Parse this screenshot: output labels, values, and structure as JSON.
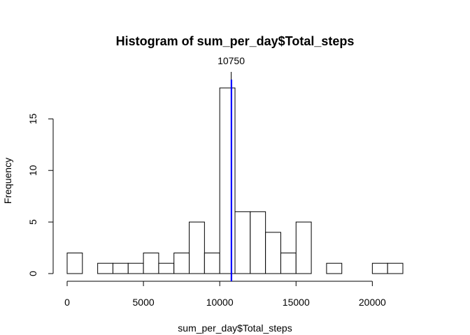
{
  "chart_data": {
    "type": "bar",
    "title": "Histogram of sum_per_day$Total_steps",
    "xlabel": "sum_per_day$Total_steps",
    "ylabel": "Frequency",
    "bin_width": 1000,
    "bins": [
      {
        "start": 0,
        "end": 1000,
        "count": 2
      },
      {
        "start": 1000,
        "end": 2000,
        "count": 0
      },
      {
        "start": 2000,
        "end": 3000,
        "count": 1
      },
      {
        "start": 3000,
        "end": 4000,
        "count": 1
      },
      {
        "start": 4000,
        "end": 5000,
        "count": 1
      },
      {
        "start": 5000,
        "end": 6000,
        "count": 2
      },
      {
        "start": 6000,
        "end": 7000,
        "count": 1
      },
      {
        "start": 7000,
        "end": 8000,
        "count": 2
      },
      {
        "start": 8000,
        "end": 9000,
        "count": 5
      },
      {
        "start": 9000,
        "end": 10000,
        "count": 2
      },
      {
        "start": 10000,
        "end": 11000,
        "count": 18
      },
      {
        "start": 11000,
        "end": 12000,
        "count": 6
      },
      {
        "start": 12000,
        "end": 13000,
        "count": 6
      },
      {
        "start": 13000,
        "end": 14000,
        "count": 4
      },
      {
        "start": 14000,
        "end": 15000,
        "count": 2
      },
      {
        "start": 15000,
        "end": 16000,
        "count": 5
      },
      {
        "start": 16000,
        "end": 17000,
        "count": 0
      },
      {
        "start": 17000,
        "end": 18000,
        "count": 1
      },
      {
        "start": 18000,
        "end": 19000,
        "count": 0
      },
      {
        "start": 19000,
        "end": 20000,
        "count": 0
      },
      {
        "start": 20000,
        "end": 21000,
        "count": 1
      },
      {
        "start": 21000,
        "end": 22000,
        "count": 1
      }
    ],
    "xlim": [
      0,
      22000
    ],
    "ylim": [
      0,
      18
    ],
    "xticks": [
      0,
      5000,
      10000,
      15000,
      20000
    ],
    "yticks": [
      0,
      5,
      10,
      15
    ],
    "reference_lines": [
      {
        "value": 10750,
        "color": "#000000",
        "label": "10750"
      },
      {
        "value": 10766,
        "color": "#0000ff",
        "label": ""
      }
    ],
    "bar_fill": "#ffffff",
    "bar_stroke": "#000000",
    "grid": false,
    "legend": "none"
  }
}
